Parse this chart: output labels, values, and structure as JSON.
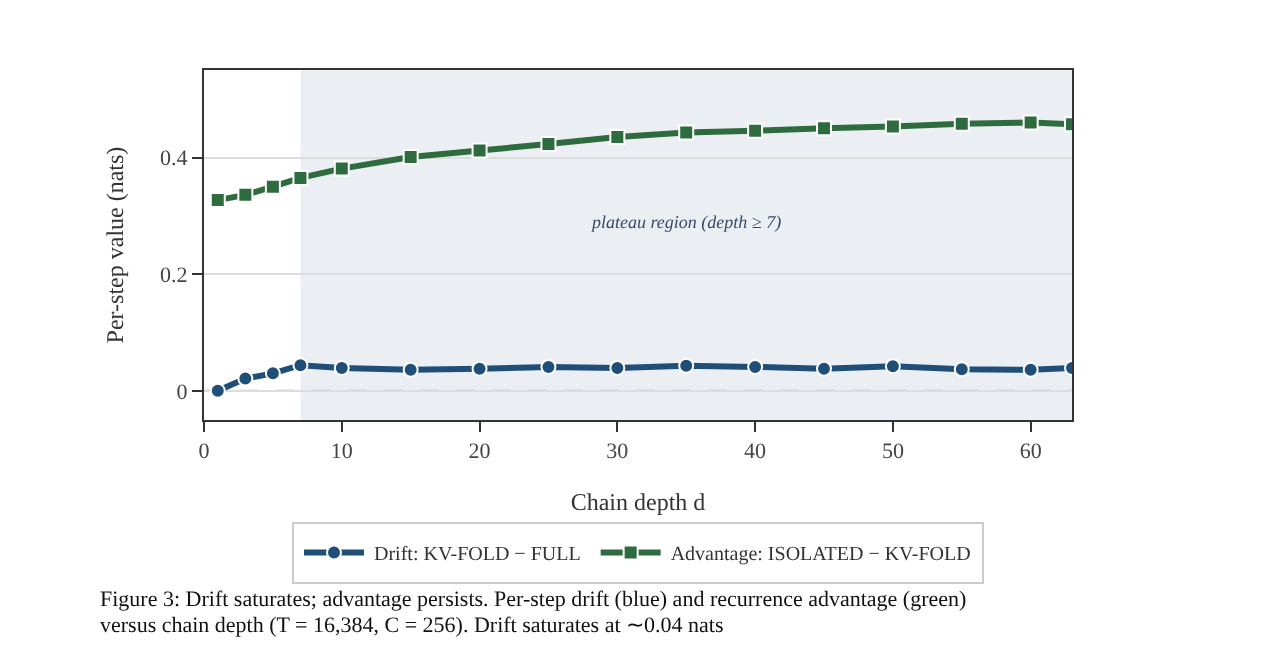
{
  "chart_data": {
    "type": "line",
    "xlabel": "Chain depth d",
    "ylabel": "Per-step value (nats)",
    "x": [
      1,
      3,
      5,
      7,
      10,
      15,
      20,
      25,
      30,
      35,
      40,
      45,
      50,
      55,
      60,
      63
    ],
    "series": [
      {
        "name": "Drift: KV-FOLD − FULL",
        "color": "#1f4e79",
        "marker": "circle",
        "values": [
          0.0,
          0.021,
          0.03,
          0.044,
          0.039,
          0.036,
          0.038,
          0.041,
          0.039,
          0.043,
          0.041,
          0.038,
          0.042,
          0.037,
          0.036,
          0.039
        ]
      },
      {
        "name": "Advantage: ISOLATED − KV-FOLD",
        "color": "#2e6b3f",
        "marker": "square",
        "values": [
          0.327,
          0.336,
          0.35,
          0.365,
          0.381,
          0.401,
          0.412,
          0.423,
          0.435,
          0.443,
          0.446,
          0.45,
          0.453,
          0.458,
          0.46,
          0.457
        ]
      }
    ],
    "xlim": [
      0,
      63
    ],
    "xticks": [
      0,
      10,
      20,
      30,
      40,
      50,
      60
    ],
    "ylim": [
      -0.05,
      0.55
    ],
    "yticks": [
      0,
      0.2,
      0.4
    ],
    "grid": "y",
    "legend": "bottom",
    "line_style": "solid",
    "bands": [
      {
        "axis": "x",
        "from": 7,
        "to": 63,
        "label": "plateau region (depth ≥ 7)",
        "color": "#ebeff3"
      }
    ],
    "ref_lines": [
      {
        "axis": "y",
        "value": 0,
        "color": "#aaaaaa",
        "line_style": "dashed"
      }
    ],
    "annotations": [
      "Figure 3: Drift saturates; advantage persists. Per-step drift (blue) and recurrence advantage (green)",
      "versus chain depth (T = 16,384, C = 256). Drift saturates at ∼0.04 nats"
    ]
  }
}
